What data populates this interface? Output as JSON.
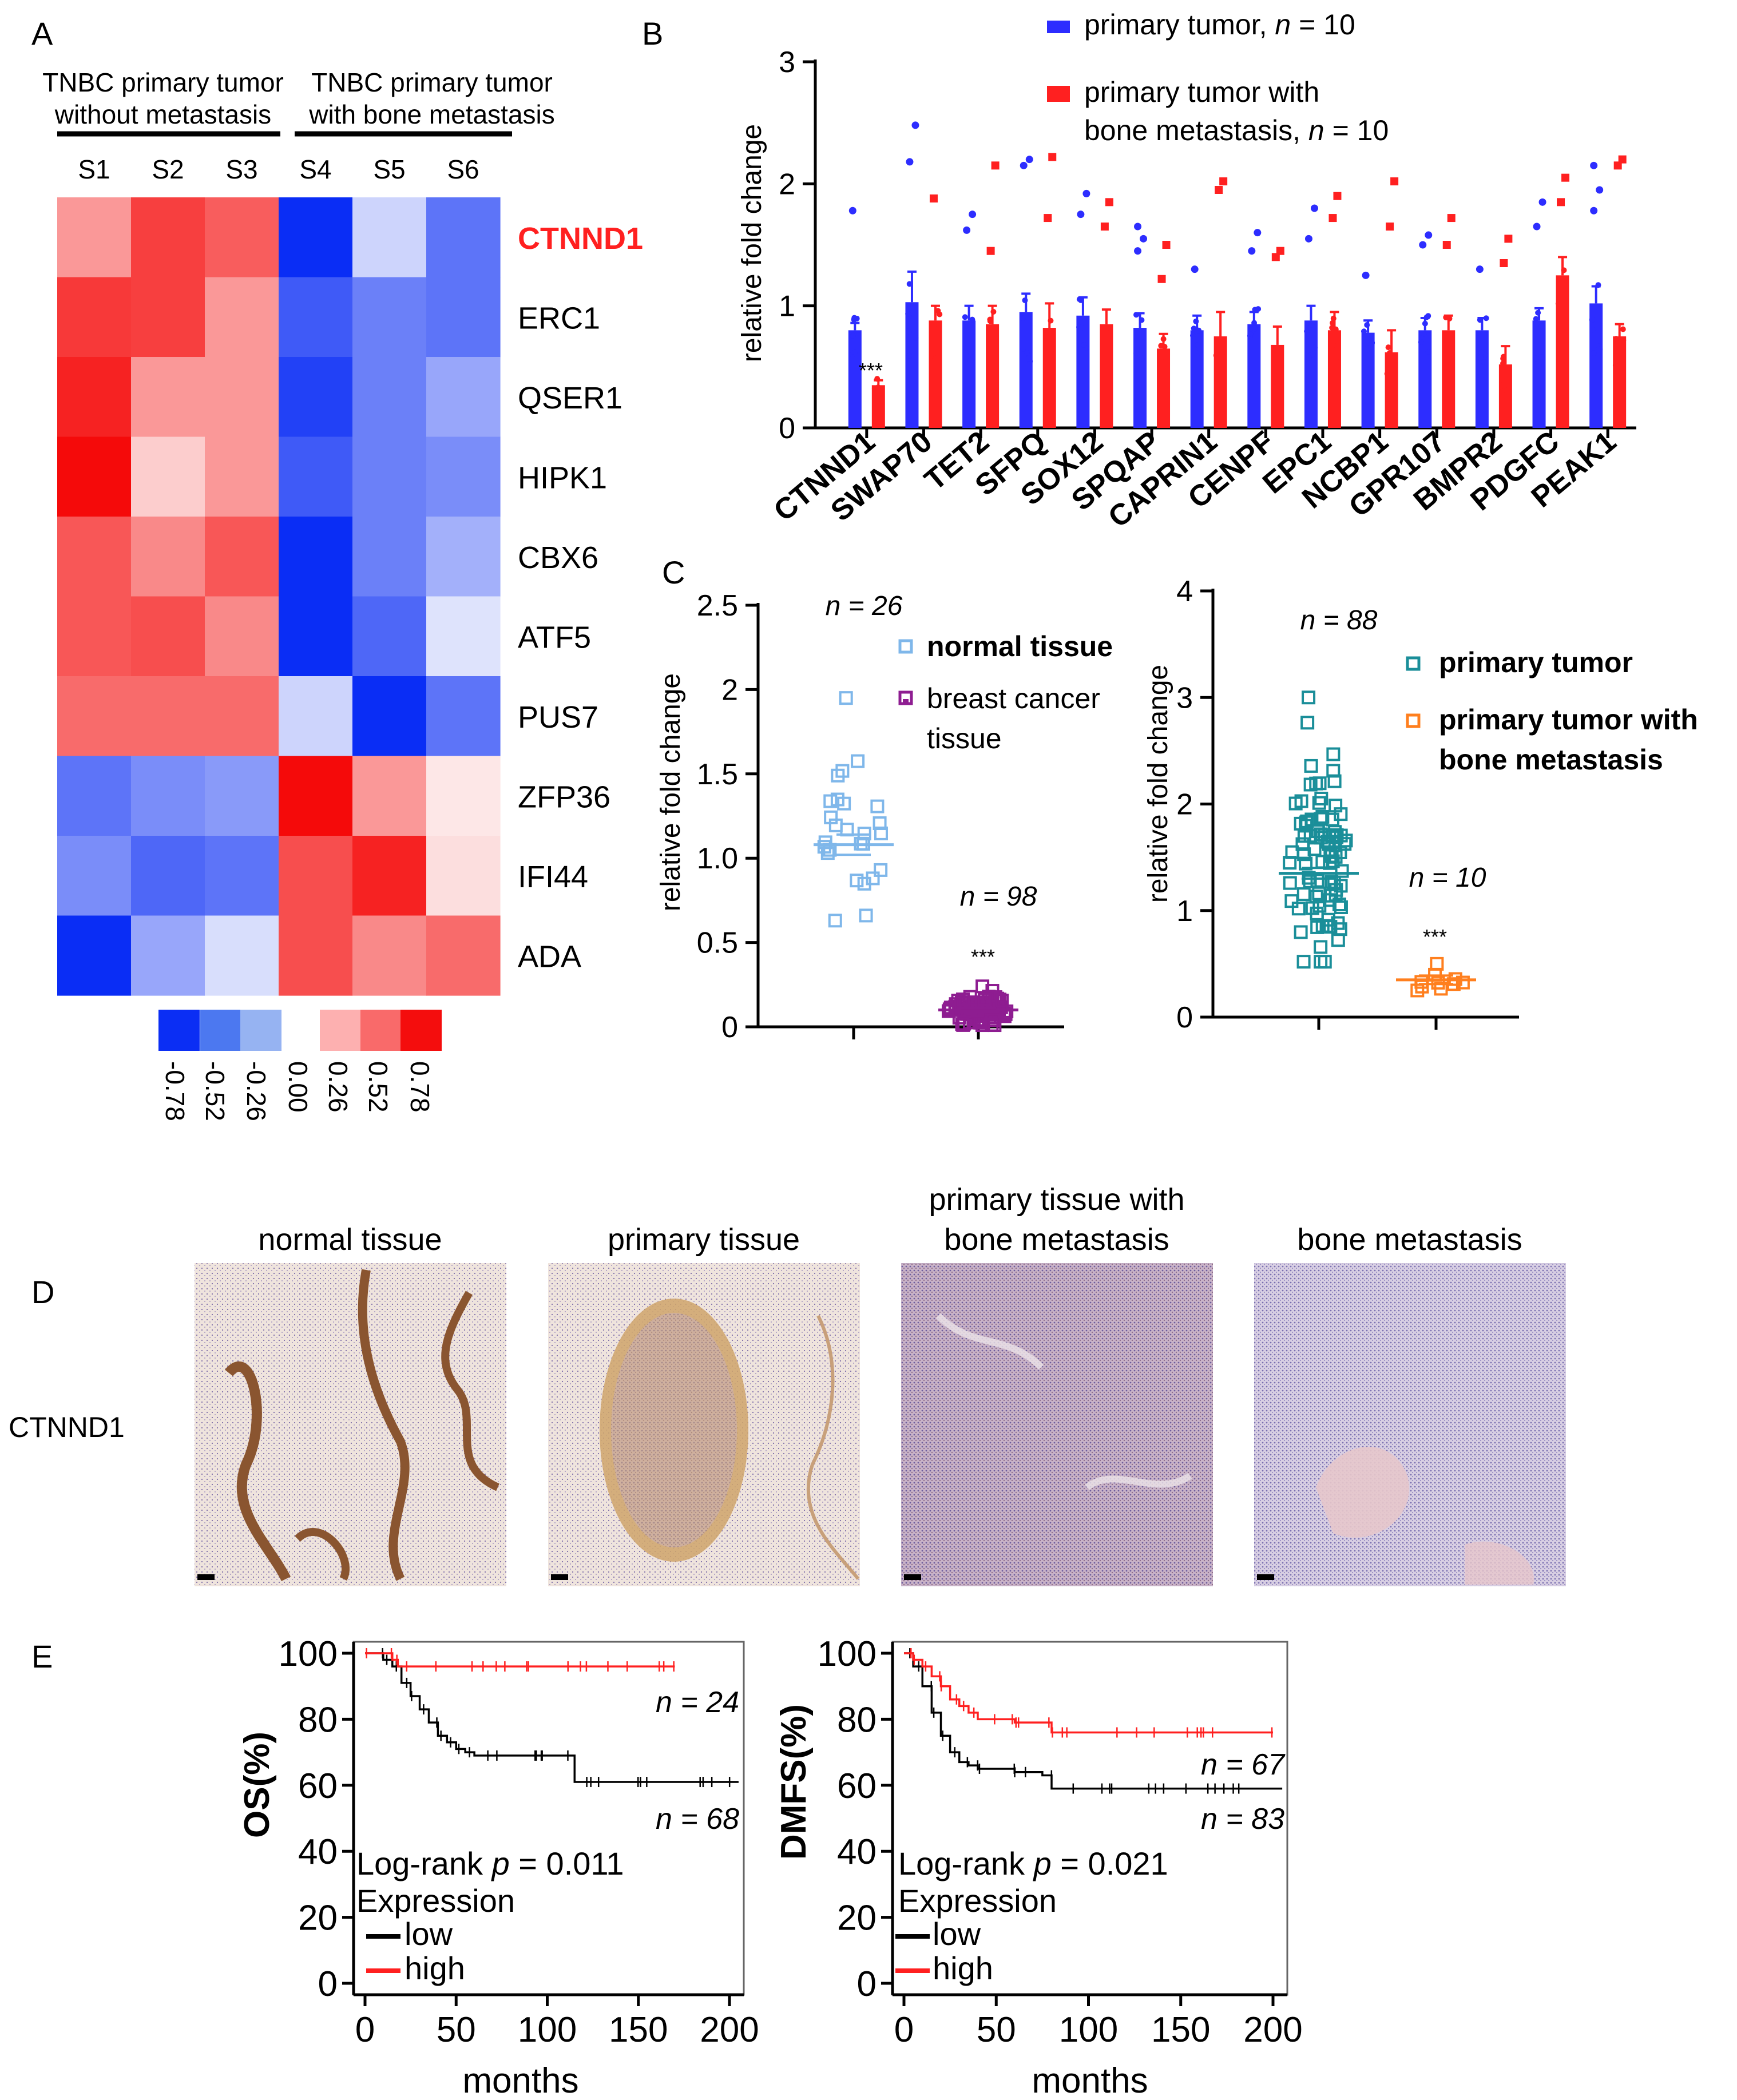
{
  "panels": {
    "A": "A",
    "B": "B",
    "C": "C",
    "D": "D",
    "E": "E"
  },
  "colors": {
    "blue": "#2d2dff",
    "red": "#ff2020",
    "light_blue": "#7fb7ea",
    "purple": "#8e1d91",
    "teal": "#1a8e99",
    "orange": "#ff7f1e",
    "black": "#000000"
  },
  "chart_data": [
    {
      "panel": "A",
      "type": "heatmap",
      "group_labels": [
        "TNBC primary tumor\nwithout metastasis",
        "TNBC primary tumor\nwith bone metastasis"
      ],
      "columns": [
        "S1",
        "S2",
        "S3",
        "S4",
        "S5",
        "S6"
      ],
      "rows": [
        "CTNND1",
        "ERC1",
        "QSER1",
        "HIPK1",
        "CBX6",
        "ATF5",
        "PUS7",
        "ZFP36",
        "IFI44",
        "ADA"
      ],
      "highlight_row": "CTNND1",
      "values": [
        [
          0.3,
          0.6,
          0.5,
          -0.78,
          -0.12,
          -0.5
        ],
        [
          0.62,
          0.6,
          0.3,
          -0.6,
          -0.45,
          -0.5
        ],
        [
          0.7,
          0.3,
          0.3,
          -0.7,
          -0.45,
          -0.3
        ],
        [
          0.8,
          0.12,
          0.3,
          -0.6,
          -0.45,
          -0.4
        ],
        [
          0.52,
          0.35,
          0.52,
          -0.78,
          -0.45,
          -0.26
        ],
        [
          0.52,
          0.55,
          0.35,
          -0.78,
          -0.55,
          -0.06
        ],
        [
          0.45,
          0.45,
          0.45,
          -0.12,
          -0.78,
          -0.5
        ],
        [
          -0.5,
          -0.4,
          -0.35,
          0.78,
          0.3,
          0.03
        ],
        [
          -0.4,
          -0.55,
          -0.5,
          0.55,
          0.7,
          0.06
        ],
        [
          -0.78,
          -0.3,
          -0.08,
          0.55,
          0.35,
          0.45
        ]
      ],
      "color_key": [
        "-0.78",
        "-0.52",
        "-0.26",
        "0.00",
        "0.26",
        "0.52",
        "0.78"
      ],
      "color_key_colors": [
        "#0b2ef4",
        "#4c78f0",
        "#96b3f2",
        "#fdb0b0",
        "#f96a6a",
        "#f40d0d"
      ]
    },
    {
      "panel": "B",
      "type": "bar",
      "ylabel": "relative fold change",
      "ylim": [
        0,
        3
      ],
      "yticks": [
        "0",
        "1",
        "2",
        "3"
      ],
      "categories": [
        "CTNND1",
        "SWAP70",
        "TET2",
        "SFPQ",
        "SOX12",
        "SPQAP",
        "CAPRIN1",
        "CENPF",
        "EPC1",
        "NCBP1",
        "GPR107",
        "BMPR2",
        "PDGFC",
        "PEAK1"
      ],
      "series": [
        {
          "name": "primary tumor, n = 10",
          "values": [
            0.8,
            1.03,
            0.88,
            0.95,
            0.92,
            0.82,
            0.8,
            0.85,
            0.88,
            0.78,
            0.8,
            0.8,
            0.88,
            1.02
          ],
          "errors": [
            0.06,
            0.25,
            0.12,
            0.15,
            0.15,
            0.12,
            0.12,
            0.1,
            0.12,
            0.1,
            0.1,
            0.1,
            0.1,
            0.14
          ],
          "outliers": [
            [
              1.78
            ],
            [
              2.18,
              2.48
            ],
            [
              1.62,
              1.75
            ],
            [
              2.15,
              2.2
            ],
            [
              1.75,
              1.92
            ],
            [
              1.45,
              1.55,
              1.65
            ],
            [
              1.3
            ],
            [
              1.45,
              1.6
            ],
            [
              1.55,
              1.8
            ],
            [
              1.25
            ],
            [
              1.5,
              1.58
            ],
            [
              1.3
            ],
            [
              1.65,
              1.85
            ],
            [
              1.78,
              1.95,
              2.15
            ]
          ]
        },
        {
          "name": "primary tumor with bone metastasis, n = 10",
          "values": [
            0.35,
            0.88,
            0.85,
            0.82,
            0.85,
            0.65,
            0.75,
            0.68,
            0.8,
            0.62,
            0.8,
            0.52,
            1.25,
            0.75
          ],
          "errors": [
            0.04,
            0.12,
            0.15,
            0.2,
            0.12,
            0.12,
            0.2,
            0.15,
            0.15,
            0.18,
            0.12,
            0.15,
            0.15,
            0.1
          ],
          "outliers": [
            [],
            [
              1.88
            ],
            [
              1.45,
              2.15
            ],
            [
              1.72,
              2.22
            ],
            [
              1.65,
              1.85
            ],
            [
              1.22,
              1.5
            ],
            [
              1.95,
              2.02
            ],
            [
              1.4,
              1.45
            ],
            [
              1.72,
              1.9
            ],
            [
              1.65,
              2.02
            ],
            [
              1.5,
              1.72
            ],
            [
              1.35,
              1.55
            ],
            [
              1.85,
              2.05
            ],
            [
              2.15,
              2.2
            ]
          ]
        }
      ],
      "legend": {
        "series1": "primary tumor, ",
        "series2_line1": "primary tumor with",
        "series2_line2": "bone metastasis, ",
        "n_label": "n",
        "n_value": " = 10"
      },
      "annotation": "***"
    },
    {
      "panel": "C-left",
      "type": "scatter",
      "ylabel": "relative fold change",
      "ylim": [
        0,
        2.5
      ],
      "yticks": [
        "0",
        "0.5",
        "1.0",
        "1.5",
        "2",
        "2.5"
      ],
      "groups": [
        {
          "name": "normal tissue",
          "n_label": "n = 26",
          "mean": 1.08,
          "sem": 0.06,
          "min": 0.63,
          "max": 1.95
        },
        {
          "name": "breast cancer tissue",
          "n_label": "n = 98",
          "mean": 0.1,
          "sem": 0.01,
          "min": 0.01,
          "max": 0.24
        }
      ],
      "annotation": "***"
    },
    {
      "panel": "C-right",
      "type": "scatter",
      "ylabel": "relative fold change",
      "ylim": [
        0,
        4
      ],
      "yticks": [
        "0",
        "1",
        "2",
        "3",
        "4"
      ],
      "groups": [
        {
          "name": "primary tumor",
          "n_label": "n = 88",
          "mean": 1.35,
          "sem": 0.05,
          "min": 0.52,
          "max": 3.0
        },
        {
          "name": "primary tumor with bone metastasis",
          "name_line1": "primary tumor with",
          "name_line2": "bone metastasis",
          "n_label": "n = 10",
          "mean": 0.35,
          "sem": 0.04,
          "min": 0.25,
          "max": 0.5
        }
      ],
      "annotation": "***"
    },
    {
      "panel": "E-left",
      "type": "line",
      "ylabel": "OS(%)",
      "xlabel": "months",
      "xlim": [
        0,
        200
      ],
      "ylim": [
        0,
        100
      ],
      "xticks": [
        "0",
        "50",
        "100",
        "150",
        "200"
      ],
      "yticks": [
        "0",
        "20",
        "40",
        "60",
        "80",
        "100"
      ],
      "stat_label": "Log-rank ",
      "p_label": "p",
      "p_value": " = 0.011",
      "series": [
        {
          "name": "low",
          "n_label": "n = 68",
          "x": [
            0,
            10,
            15,
            20,
            25,
            30,
            35,
            40,
            45,
            50,
            55,
            60,
            70,
            80,
            95,
            110,
            115,
            140,
            170,
            205
          ],
          "y": [
            100,
            98,
            96,
            91,
            87,
            83,
            79,
            75,
            73,
            71,
            70,
            69,
            69,
            69,
            69,
            69,
            61,
            61,
            61,
            61
          ]
        },
        {
          "name": "high",
          "n_label": "n = 24",
          "x": [
            0,
            10,
            15,
            18,
            40,
            80,
            120,
            170
          ],
          "y": [
            100,
            100,
            98,
            96,
            96,
            96,
            96,
            96
          ]
        }
      ]
    },
    {
      "panel": "E-right",
      "type": "line",
      "ylabel": "DMFS(%)",
      "xlabel": "months",
      "xlim": [
        0,
        200
      ],
      "ylim": [
        0,
        100
      ],
      "xticks": [
        "0",
        "50",
        "100",
        "150",
        "200"
      ],
      "yticks": [
        "0",
        "20",
        "40",
        "60",
        "80",
        "100"
      ],
      "stat_label": "Log-rank ",
      "p_label": "p",
      "p_value": " = 0.021",
      "series": [
        {
          "name": "low",
          "n_label": "n = 83",
          "x": [
            0,
            5,
            10,
            15,
            20,
            25,
            30,
            35,
            40,
            60,
            75,
            80,
            120,
            160,
            205
          ],
          "y": [
            100,
            96,
            90,
            82,
            75,
            70,
            67,
            66,
            65,
            64,
            63,
            59,
            59,
            59,
            59
          ]
        },
        {
          "name": "high",
          "n_label": "n = 67",
          "x": [
            0,
            5,
            10,
            15,
            20,
            25,
            30,
            35,
            40,
            60,
            75,
            80,
            120,
            160,
            200
          ],
          "y": [
            100,
            98,
            96,
            93,
            90,
            86,
            84,
            82,
            80,
            79,
            79,
            76,
            76,
            76,
            76
          ]
        }
      ]
    }
  ],
  "panel_d": {
    "row_label": "CTNND1",
    "titles": [
      "normal tissue",
      "primary tissue",
      "primary tissue with\nbone metastasis",
      "bone metastasis"
    ]
  },
  "legend_c_left": {
    "normal": "normal tissue",
    "cancer_line1": "breast cancer",
    "cancer_line2": "tissue"
  },
  "legend_c_right": {
    "primary": "primary tumor",
    "bone_line1": "primary tumor with",
    "bone_line2": "bone metastasis"
  },
  "legend_e": {
    "title": "Expression",
    "low": "low",
    "high": "high"
  }
}
